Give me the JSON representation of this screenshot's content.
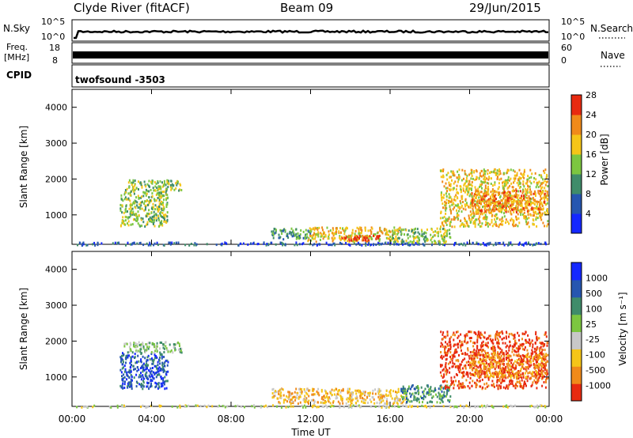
{
  "header": {
    "station": "Clyde River (fitACF)",
    "beam": "Beam 09",
    "date": "29/Jun/2015"
  },
  "top_panels": {
    "sky": {
      "left_label": "N.Sky",
      "left_ticks": [
        "10^5",
        "10^0"
      ],
      "right_ticks": [
        "10^5",
        "10^0"
      ],
      "right_label": "N.Search"
    },
    "freq": {
      "left_label_line1": "Freq.",
      "left_label_line2": "[MHz]",
      "left_ticks": [
        "18",
        "8"
      ],
      "right_ticks": [
        "60",
        "0"
      ],
      "right_label": "Nave"
    },
    "cpid": {
      "label": "CPID",
      "value": "twofsound -3503"
    }
  },
  "chart_data": [
    {
      "type": "heatmap",
      "name": "power",
      "ylabel": "Slant Range [km]",
      "ylim": [
        180,
        4500
      ],
      "yticks": [
        "1000",
        "2000",
        "3000",
        "4000"
      ],
      "xticks": [
        "00:00",
        "04:00",
        "08:00",
        "12:00",
        "16:00",
        "20:00",
        "00:00"
      ],
      "colorbar": {
        "label": "Power [dB]",
        "ticks": [
          "4",
          "8",
          "12",
          "16",
          "20",
          "24",
          "28"
        ],
        "colors": [
          "#1428ff",
          "#2656b0",
          "#3f8c6a",
          "#7cc640",
          "#f5c518",
          "#f08a1a",
          "#e82a10"
        ]
      },
      "regions": [
        {
          "t": [
            0.2,
            23.9
          ],
          "r": [
            180,
            260
          ],
          "level": 1
        },
        {
          "t": [
            2.4,
            4.8
          ],
          "r": [
            700,
            1700
          ],
          "level": 3
        },
        {
          "t": [
            2.6,
            5.5
          ],
          "r": [
            1700,
            2000
          ],
          "level": 3
        },
        {
          "t": [
            10.0,
            12.0
          ],
          "r": [
            350,
            650
          ],
          "level": 2
        },
        {
          "t": [
            11.8,
            16.5
          ],
          "r": [
            280,
            680
          ],
          "level": 4
        },
        {
          "t": [
            13.5,
            15.5
          ],
          "r": [
            300,
            450
          ],
          "level": 6
        },
        {
          "t": [
            16.0,
            19.0
          ],
          "r": [
            250,
            650
          ],
          "level": 3
        },
        {
          "t": [
            18.5,
            23.9
          ],
          "r": [
            700,
            2300
          ],
          "level": 4
        },
        {
          "t": [
            20.0,
            23.9
          ],
          "r": [
            1100,
            1700
          ],
          "level": 5
        }
      ]
    },
    {
      "type": "heatmap",
      "name": "velocity",
      "ylabel": "Slant Range [km]",
      "ylim": [
        180,
        4500
      ],
      "yticks": [
        "1000",
        "2000",
        "3000",
        "4000"
      ],
      "xticks": [
        "00:00",
        "04:00",
        "08:00",
        "12:00",
        "16:00",
        "20:00",
        "00:00"
      ],
      "xlabel": "Time UT",
      "colorbar": {
        "label": "Velocity [m s⁻¹]",
        "ticks": [
          "1000",
          "500",
          "100",
          "25",
          "-25",
          "-100",
          "-500",
          "-1000"
        ],
        "colors": [
          "#1428ff",
          "#2656b0",
          "#3f8c6a",
          "#7cc640",
          "#c8c8c8",
          "#f5c518",
          "#f08a1a",
          "#e82a10"
        ]
      },
      "regions": [
        {
          "t": [
            0.2,
            23.9
          ],
          "r": [
            180,
            240
          ],
          "level": 4
        },
        {
          "t": [
            2.4,
            4.8
          ],
          "r": [
            700,
            1700
          ],
          "level": 1
        },
        {
          "t": [
            2.6,
            5.5
          ],
          "r": [
            1700,
            2000
          ],
          "level": 3
        },
        {
          "t": [
            10.0,
            16.8
          ],
          "r": [
            280,
            700
          ],
          "level": 5
        },
        {
          "t": [
            16.5,
            19.0
          ],
          "r": [
            300,
            800
          ],
          "level": 2
        },
        {
          "t": [
            18.5,
            23.9
          ],
          "r": [
            700,
            2300
          ],
          "level": 7
        },
        {
          "t": [
            20.0,
            23.9
          ],
          "r": [
            1000,
            1700
          ],
          "level": 6
        }
      ]
    }
  ]
}
